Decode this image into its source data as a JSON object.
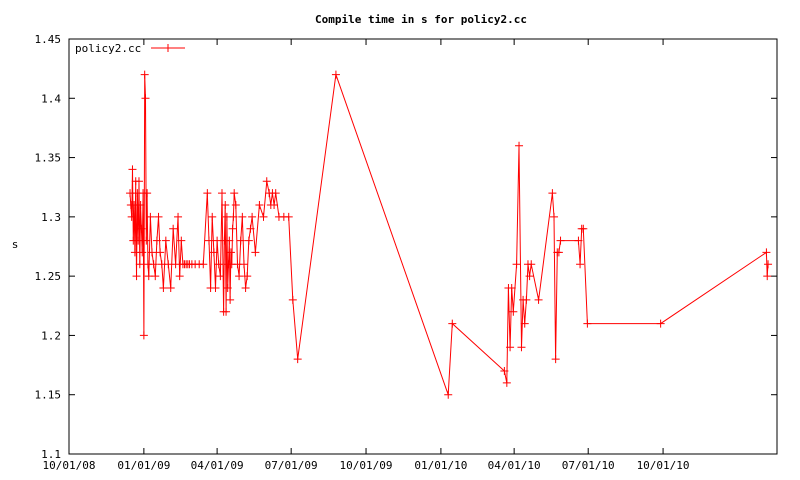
{
  "chart_data": {
    "type": "line",
    "title": "Compile time in s for policy2.cc",
    "xlabel": "",
    "ylabel": "s",
    "x_type": "date",
    "xlim": [
      "2008-10-01",
      "2011-02-18"
    ],
    "ylim": [
      1.1,
      1.45
    ],
    "yticks": [
      1.1,
      1.15,
      1.2,
      1.25,
      1.3,
      1.35,
      1.4,
      1.45
    ],
    "ytick_labels": [
      "1.1",
      "1.15",
      "1.2",
      "1.25",
      "1.3",
      "1.35",
      "1.4",
      "1.45"
    ],
    "xticks": [
      "2008-10-01",
      "2009-01-01",
      "2009-04-01",
      "2009-07-01",
      "2009-10-01",
      "2010-01-01",
      "2010-04-01",
      "2010-07-01",
      "2010-10-01"
    ],
    "xtick_labels": [
      "10/01/08",
      "01/01/09",
      "04/01/09",
      "07/01/09",
      "10/01/09",
      "01/01/10",
      "04/01/10",
      "07/01/10",
      "10/01/10"
    ],
    "grid": false,
    "legend": {
      "position": "top-left"
    },
    "series": [
      {
        "name": "policy2.cc",
        "color": "#ff0000",
        "x": [
          "2008-12-15",
          "2008-12-16",
          "2008-12-17",
          "2008-12-18",
          "2008-12-19",
          "2008-12-20",
          "2008-12-21",
          "2008-12-22",
          "2008-12-23",
          "2008-12-24",
          "2008-12-25",
          "2008-12-26",
          "2008-12-27",
          "2008-12-28",
          "2008-12-29",
          "2008-12-30",
          "2008-12-31",
          "2009-01-01",
          "2009-01-02",
          "2009-01-03",
          "2009-01-04",
          "2009-01-05",
          "2009-01-06",
          "2009-01-07",
          "2009-01-09",
          "2009-01-11",
          "2009-01-13",
          "2009-01-15",
          "2009-01-17",
          "2009-01-19",
          "2009-01-21",
          "2009-01-23",
          "2009-01-25",
          "2009-01-28",
          "2009-01-31",
          "2009-02-03",
          "2009-02-06",
          "2009-02-09",
          "2009-02-12",
          "2009-02-14",
          "2009-02-16",
          "2009-02-18",
          "2009-02-20",
          "2009-02-22",
          "2009-02-24",
          "2009-02-26",
          "2009-03-01",
          "2009-03-05",
          "2009-03-10",
          "2009-03-15",
          "2009-03-20",
          "2009-03-22",
          "2009-03-24",
          "2009-03-26",
          "2009-03-28",
          "2009-03-30",
          "2009-04-01",
          "2009-04-03",
          "2009-04-05",
          "2009-04-07",
          "2009-04-09",
          "2009-04-10",
          "2009-04-11",
          "2009-04-12",
          "2009-04-13",
          "2009-04-14",
          "2009-04-15",
          "2009-04-16",
          "2009-04-17",
          "2009-04-18",
          "2009-04-19",
          "2009-04-20",
          "2009-04-21",
          "2009-04-22",
          "2009-04-24",
          "2009-04-26",
          "2009-04-28",
          "2009-04-30",
          "2009-05-02",
          "2009-05-04",
          "2009-05-06",
          "2009-05-08",
          "2009-05-10",
          "2009-05-12",
          "2009-05-14",
          "2009-05-18",
          "2009-05-23",
          "2009-05-28",
          "2009-06-01",
          "2009-06-04",
          "2009-06-06",
          "2009-06-08",
          "2009-06-10",
          "2009-06-12",
          "2009-06-16",
          "2009-06-22",
          "2009-06-28",
          "2009-07-03",
          "2009-07-09",
          "2009-08-25",
          "2010-01-10",
          "2010-01-15",
          "2010-03-20",
          "2010-03-23",
          "2010-03-25",
          "2010-03-27",
          "2010-03-29",
          "2010-03-31",
          "2010-04-04",
          "2010-04-07",
          "2010-04-10",
          "2010-04-12",
          "2010-04-14",
          "2010-04-16",
          "2010-04-18",
          "2010-04-20",
          "2010-04-22",
          "2010-05-01",
          "2010-05-18",
          "2010-05-20",
          "2010-05-22",
          "2010-05-24",
          "2010-05-26",
          "2010-05-28",
          "2010-06-19",
          "2010-06-21",
          "2010-06-23",
          "2010-06-25",
          "2010-06-30",
          "2010-09-28",
          "2011-02-05",
          "2011-02-06",
          "2011-02-07"
        ],
        "y": [
          1.32,
          1.31,
          1.3,
          1.34,
          1.28,
          1.31,
          1.27,
          1.33,
          1.25,
          1.32,
          1.28,
          1.33,
          1.26,
          1.31,
          1.29,
          1.27,
          1.32,
          1.2,
          1.42,
          1.4,
          1.28,
          1.32,
          1.26,
          1.25,
          1.3,
          1.27,
          1.26,
          1.25,
          1.28,
          1.3,
          1.27,
          1.26,
          1.24,
          1.28,
          1.26,
          1.24,
          1.29,
          1.26,
          1.3,
          1.25,
          1.28,
          1.26,
          1.26,
          1.26,
          1.26,
          1.26,
          1.26,
          1.26,
          1.26,
          1.26,
          1.32,
          1.28,
          1.24,
          1.3,
          1.27,
          1.24,
          1.28,
          1.26,
          1.25,
          1.32,
          1.22,
          1.28,
          1.31,
          1.22,
          1.3,
          1.24,
          1.26,
          1.28,
          1.23,
          1.27,
          1.26,
          1.29,
          1.3,
          1.32,
          1.31,
          1.26,
          1.25,
          1.28,
          1.3,
          1.26,
          1.24,
          1.25,
          1.28,
          1.29,
          1.3,
          1.27,
          1.31,
          1.3,
          1.33,
          1.32,
          1.31,
          1.32,
          1.31,
          1.32,
          1.3,
          1.3,
          1.3,
          1.23,
          1.18,
          1.42,
          1.15,
          1.21,
          1.17,
          1.16,
          1.24,
          1.19,
          1.24,
          1.22,
          1.26,
          1.36,
          1.19,
          1.23,
          1.21,
          1.23,
          1.26,
          1.25,
          1.26,
          1.23,
          1.32,
          1.3,
          1.18,
          1.27,
          1.27,
          1.28,
          1.28,
          1.26,
          1.29,
          1.29,
          1.21,
          1.21,
          1.27,
          1.25,
          1.26
        ]
      }
    ]
  }
}
